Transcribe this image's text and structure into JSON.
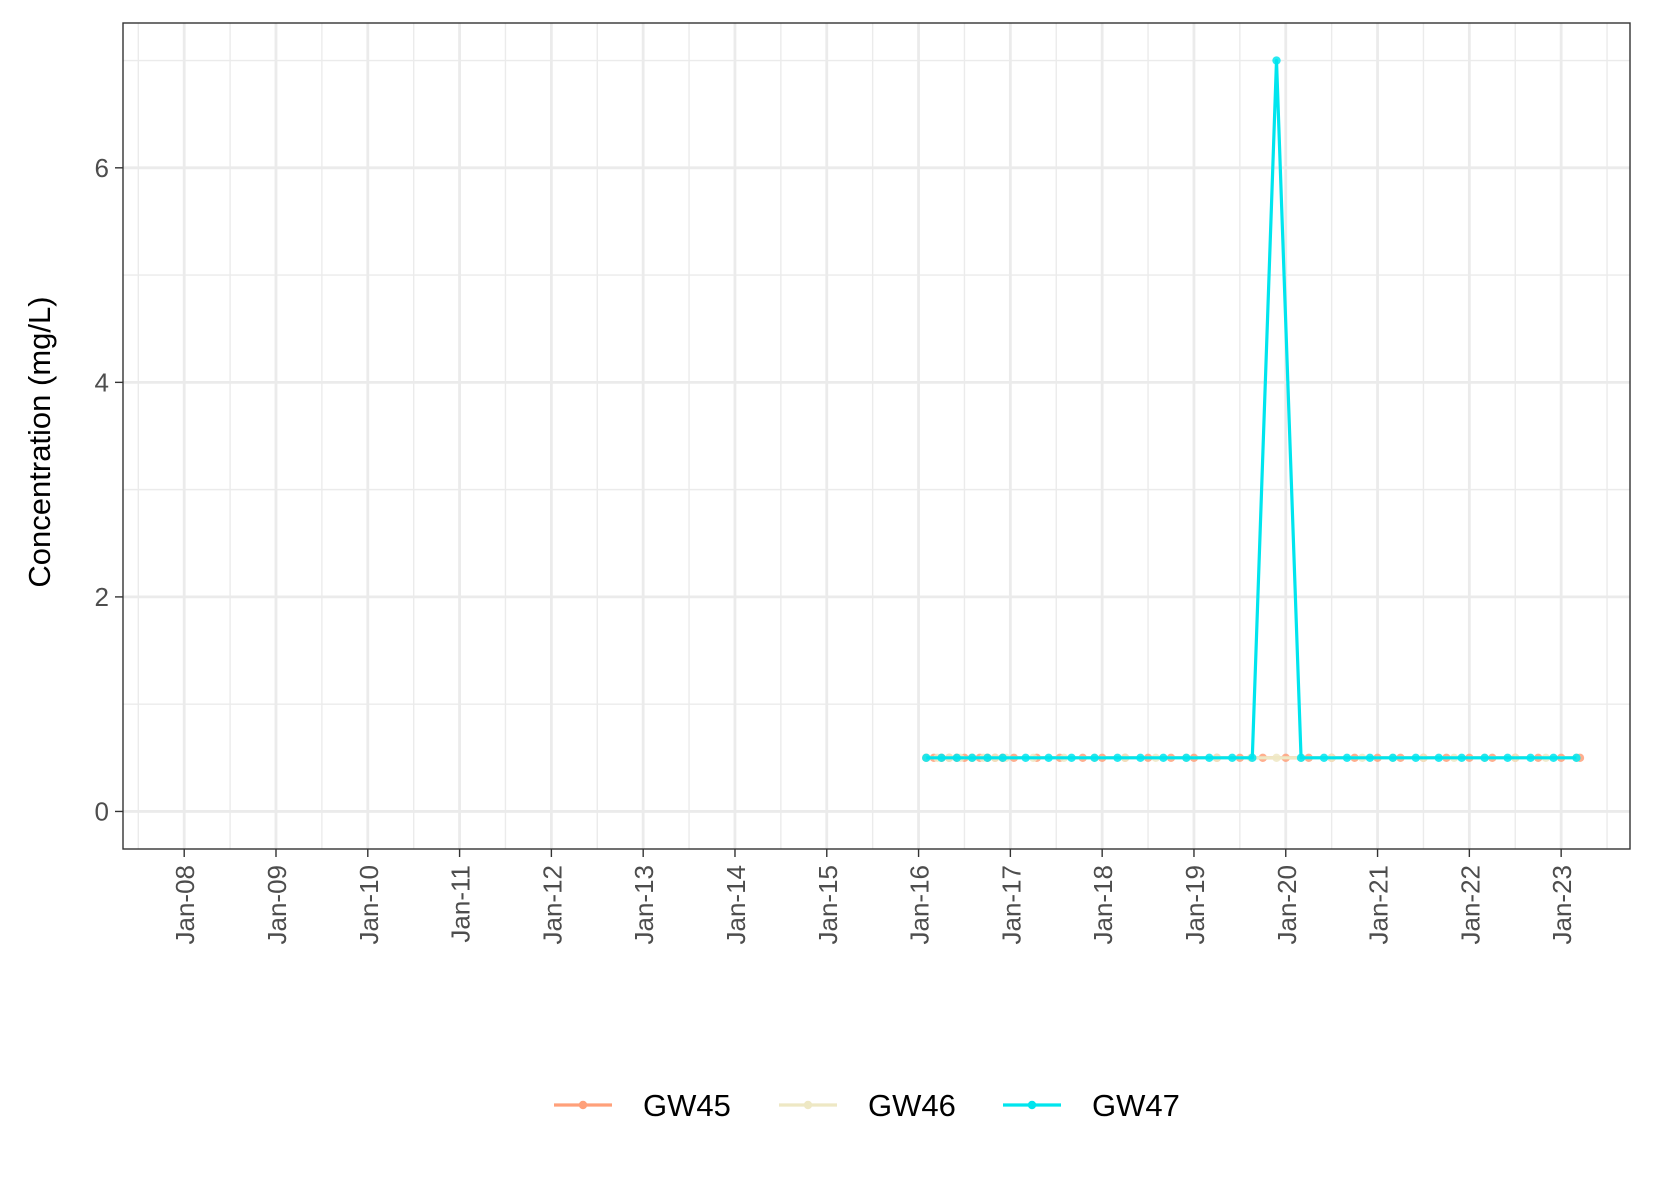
{
  "chart_data": {
    "type": "line",
    "title": "",
    "xlabel": "",
    "ylabel": "Concentration (mg/L)",
    "x_ticks": [
      "Jan-08",
      "Jan-09",
      "Jan-10",
      "Jan-11",
      "Jan-12",
      "Jan-13",
      "Jan-14",
      "Jan-15",
      "Jan-16",
      "Jan-17",
      "Jan-18",
      "Jan-19",
      "Jan-20",
      "Jan-21",
      "Jan-22",
      "Jan-23"
    ],
    "y_ticks": [
      0,
      2,
      4,
      6
    ],
    "xlim": [
      "2007-05-01",
      "2023-10-01"
    ],
    "ylim": [
      -0.35,
      7.35
    ],
    "grid": true,
    "legend_position": "bottom",
    "series": [
      {
        "name": "GW45",
        "color": "#FFA07A",
        "points": [
          [
            "2016-02-01",
            0.5
          ],
          [
            "2016-03-01",
            0.5
          ],
          [
            "2016-04-01",
            0.5
          ],
          [
            "2016-05-01",
            0.5
          ],
          [
            "2016-06-01",
            0.5
          ],
          [
            "2016-07-01",
            0.5
          ],
          [
            "2016-08-01",
            0.5
          ],
          [
            "2016-09-01",
            0.5
          ],
          [
            "2016-10-01",
            0.5
          ],
          [
            "2016-11-01",
            0.5
          ],
          [
            "2016-12-01",
            0.5
          ],
          [
            "2017-01-15",
            0.5
          ],
          [
            "2017-04-15",
            0.5
          ],
          [
            "2017-07-15",
            0.5
          ],
          [
            "2017-10-15",
            0.5
          ],
          [
            "2018-01-01",
            0.5
          ],
          [
            "2018-04-01",
            0.5
          ],
          [
            "2018-07-01",
            0.5
          ],
          [
            "2018-10-01",
            0.5
          ],
          [
            "2019-01-01",
            0.5
          ],
          [
            "2019-04-01",
            0.5
          ],
          [
            "2019-07-01",
            0.5
          ],
          [
            "2019-10-01",
            0.5
          ],
          [
            "2020-01-01",
            0.5
          ],
          [
            "2020-04-01",
            0.5
          ],
          [
            "2020-07-01",
            0.5
          ],
          [
            "2020-10-01",
            0.5
          ],
          [
            "2021-01-01",
            0.5
          ],
          [
            "2021-04-01",
            0.5
          ],
          [
            "2021-07-01",
            0.5
          ],
          [
            "2021-10-01",
            0.5
          ],
          [
            "2022-01-01",
            0.5
          ],
          [
            "2022-04-01",
            0.5
          ],
          [
            "2022-07-01",
            0.5
          ],
          [
            "2022-10-01",
            0.5
          ],
          [
            "2023-01-01",
            0.5
          ],
          [
            "2023-03-15",
            0.5
          ]
        ]
      },
      {
        "name": "GW46",
        "color": "#EEE8C4",
        "points": [
          [
            "2016-02-01",
            0.5
          ],
          [
            "2016-03-15",
            0.5
          ],
          [
            "2016-05-01",
            0.5
          ],
          [
            "2016-06-15",
            0.5
          ],
          [
            "2016-08-01",
            0.5
          ],
          [
            "2016-09-15",
            0.5
          ],
          [
            "2016-11-01",
            0.5
          ],
          [
            "2016-12-15",
            0.5
          ],
          [
            "2017-04-01",
            0.5
          ],
          [
            "2017-08-01",
            0.5
          ],
          [
            "2017-12-01",
            0.5
          ],
          [
            "2018-04-01",
            0.5
          ],
          [
            "2018-08-01",
            0.5
          ],
          [
            "2018-12-01",
            0.5
          ],
          [
            "2019-04-01",
            0.5
          ],
          [
            "2019-08-15",
            0.5
          ],
          [
            "2019-11-25",
            0.5
          ],
          [
            "2020-03-01",
            0.5
          ],
          [
            "2020-07-01",
            0.5
          ],
          [
            "2020-11-01",
            0.5
          ],
          [
            "2021-03-01",
            0.5
          ],
          [
            "2021-07-01",
            0.5
          ],
          [
            "2021-11-01",
            0.5
          ],
          [
            "2022-03-01",
            0.5
          ],
          [
            "2022-07-01",
            0.5
          ],
          [
            "2022-11-01",
            0.5
          ],
          [
            "2023-03-01",
            0.5
          ]
        ]
      },
      {
        "name": "GW47",
        "color": "#00E5EE",
        "points": [
          [
            "2016-02-01",
            0.5
          ],
          [
            "2016-04-01",
            0.5
          ],
          [
            "2016-06-01",
            0.5
          ],
          [
            "2016-08-01",
            0.5
          ],
          [
            "2016-10-01",
            0.5
          ],
          [
            "2016-12-01",
            0.5
          ],
          [
            "2017-03-01",
            0.5
          ],
          [
            "2017-06-01",
            0.5
          ],
          [
            "2017-09-01",
            0.5
          ],
          [
            "2017-12-01",
            0.5
          ],
          [
            "2018-03-01",
            0.5
          ],
          [
            "2018-06-01",
            0.5
          ],
          [
            "2018-09-01",
            0.5
          ],
          [
            "2018-12-01",
            0.5
          ],
          [
            "2019-03-01",
            0.5
          ],
          [
            "2019-06-01",
            0.5
          ],
          [
            "2019-08-20",
            0.5
          ],
          [
            "2019-11-25",
            7.0
          ],
          [
            "2020-03-01",
            0.5
          ],
          [
            "2020-06-01",
            0.5
          ],
          [
            "2020-09-01",
            0.5
          ],
          [
            "2020-12-01",
            0.5
          ],
          [
            "2021-03-01",
            0.5
          ],
          [
            "2021-06-01",
            0.5
          ],
          [
            "2021-09-01",
            0.5
          ],
          [
            "2021-12-01",
            0.5
          ],
          [
            "2022-03-01",
            0.5
          ],
          [
            "2022-06-01",
            0.5
          ],
          [
            "2022-09-01",
            0.5
          ],
          [
            "2022-12-01",
            0.5
          ],
          [
            "2023-03-01",
            0.5
          ]
        ]
      }
    ]
  }
}
